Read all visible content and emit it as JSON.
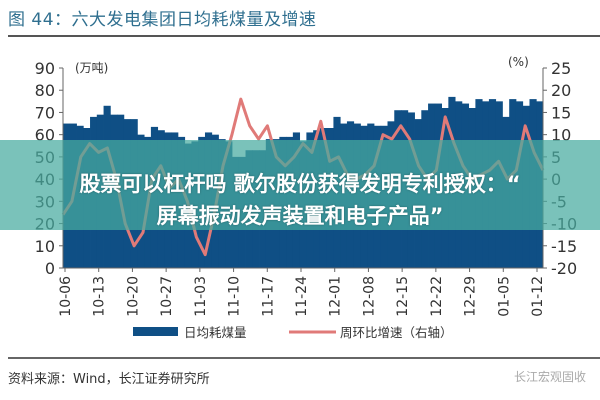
{
  "title": "图 44：六大发电集团日均耗煤量及增速",
  "source": "资料来源：Wind，长江证券研究所",
  "watermark": "长江宏观固收",
  "banner": {
    "line1": "股票可以杠杆吗 歌尔股份获得发明专利授权：“",
    "line2": "屏幕振动发声装置和电子产品”"
  },
  "chart_data": {
    "type": "bar+line",
    "left_axis": {
      "label": "(万吨)",
      "range": [
        0,
        90
      ],
      "ticks": [
        "90",
        "80",
        "70",
        "60",
        "50",
        "40",
        "30",
        "20",
        "10",
        "0"
      ]
    },
    "right_axis": {
      "label": "(%)",
      "range": [
        -20,
        25
      ],
      "ticks": [
        "25",
        "20",
        "15",
        "10",
        "5",
        "0",
        "-5",
        "-10",
        "-15",
        "-20"
      ]
    },
    "x_ticks": [
      "10-06",
      "10-13",
      "10-20",
      "10-27",
      "11-03",
      "11-10",
      "11-17",
      "11-24",
      "12-01",
      "12-08",
      "12-15",
      "12-22",
      "12-29",
      "01-05",
      "01-12"
    ],
    "series": [
      {
        "name": "日均耗煤量",
        "type": "bar",
        "axis": "left",
        "color": "#0f4f85",
        "values": [
          65,
          65,
          64,
          63,
          68,
          69,
          73,
          69,
          69,
          67,
          67,
          60,
          59,
          63.5,
          62,
          61,
          61,
          59,
          56,
          57,
          59,
          61,
          60,
          58,
          57,
          50,
          50,
          53,
          53,
          53,
          58,
          58,
          59,
          59,
          61,
          57,
          61,
          62,
          63,
          63,
          68,
          65,
          66,
          65,
          64,
          65,
          64,
          64,
          66,
          71,
          71,
          70,
          67,
          71,
          74,
          74,
          72,
          77,
          75,
          74,
          72,
          76,
          75,
          76,
          75,
          68,
          76,
          75,
          73,
          76,
          75
        ]
      },
      {
        "name": "周环比增速（右轴）",
        "type": "line",
        "axis": "right",
        "color": "#e07a78",
        "values": [
          -8,
          -5,
          5,
          8,
          6,
          7,
          0,
          -10,
          -15,
          -12,
          0,
          3,
          -2,
          0,
          -5,
          -13,
          -17,
          -8,
          3,
          10,
          18,
          12,
          9,
          12,
          5,
          3,
          5,
          8,
          6,
          13,
          4,
          5,
          1,
          0,
          1,
          3,
          10,
          9,
          12,
          9,
          3,
          0,
          2,
          14,
          8,
          3,
          0,
          1,
          2,
          4,
          0,
          2,
          12,
          6,
          2
        ]
      }
    ],
    "legend_position": "bottom"
  }
}
